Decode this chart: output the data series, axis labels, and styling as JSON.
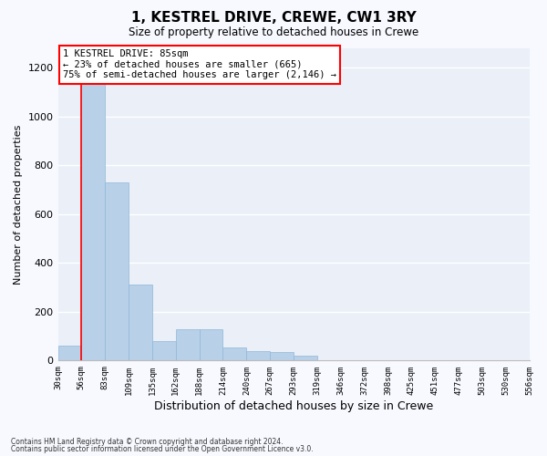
{
  "title": "1, KESTREL DRIVE, CREWE, CW1 3RY",
  "subtitle": "Size of property relative to detached houses in Crewe",
  "xlabel": "Distribution of detached houses by size in Crewe",
  "ylabel": "Number of detached properties",
  "bar_color": "#b8d0e8",
  "bar_edge_color": "#90b8d8",
  "fig_facecolor": "#f8f9ff",
  "axes_facecolor": "#eaeff8",
  "grid_color": "#ffffff",
  "bin_labels": [
    "30sqm",
    "56sqm",
    "83sqm",
    "109sqm",
    "135sqm",
    "162sqm",
    "188sqm",
    "214sqm",
    "240sqm",
    "267sqm",
    "293sqm",
    "319sqm",
    "346sqm",
    "372sqm",
    "398sqm",
    "425sqm",
    "451sqm",
    "477sqm",
    "503sqm",
    "530sqm",
    "556sqm"
  ],
  "bar_heights": [
    60,
    1200,
    730,
    310,
    80,
    130,
    130,
    55,
    40,
    35,
    20,
    0,
    0,
    0,
    0,
    0,
    0,
    0,
    0,
    0
  ],
  "property_bin_index": 1,
  "ylim": [
    0,
    1280
  ],
  "yticks": [
    0,
    200,
    400,
    600,
    800,
    1000,
    1200
  ],
  "annotation_title": "1 KESTREL DRIVE: 85sqm",
  "annotation_line1": "← 23% of detached houses are smaller (665)",
  "annotation_line2": "75% of semi-detached houses are larger (2,146) →",
  "footer_line1": "Contains HM Land Registry data © Crown copyright and database right 2024.",
  "footer_line2": "Contains public sector information licensed under the Open Government Licence v3.0."
}
